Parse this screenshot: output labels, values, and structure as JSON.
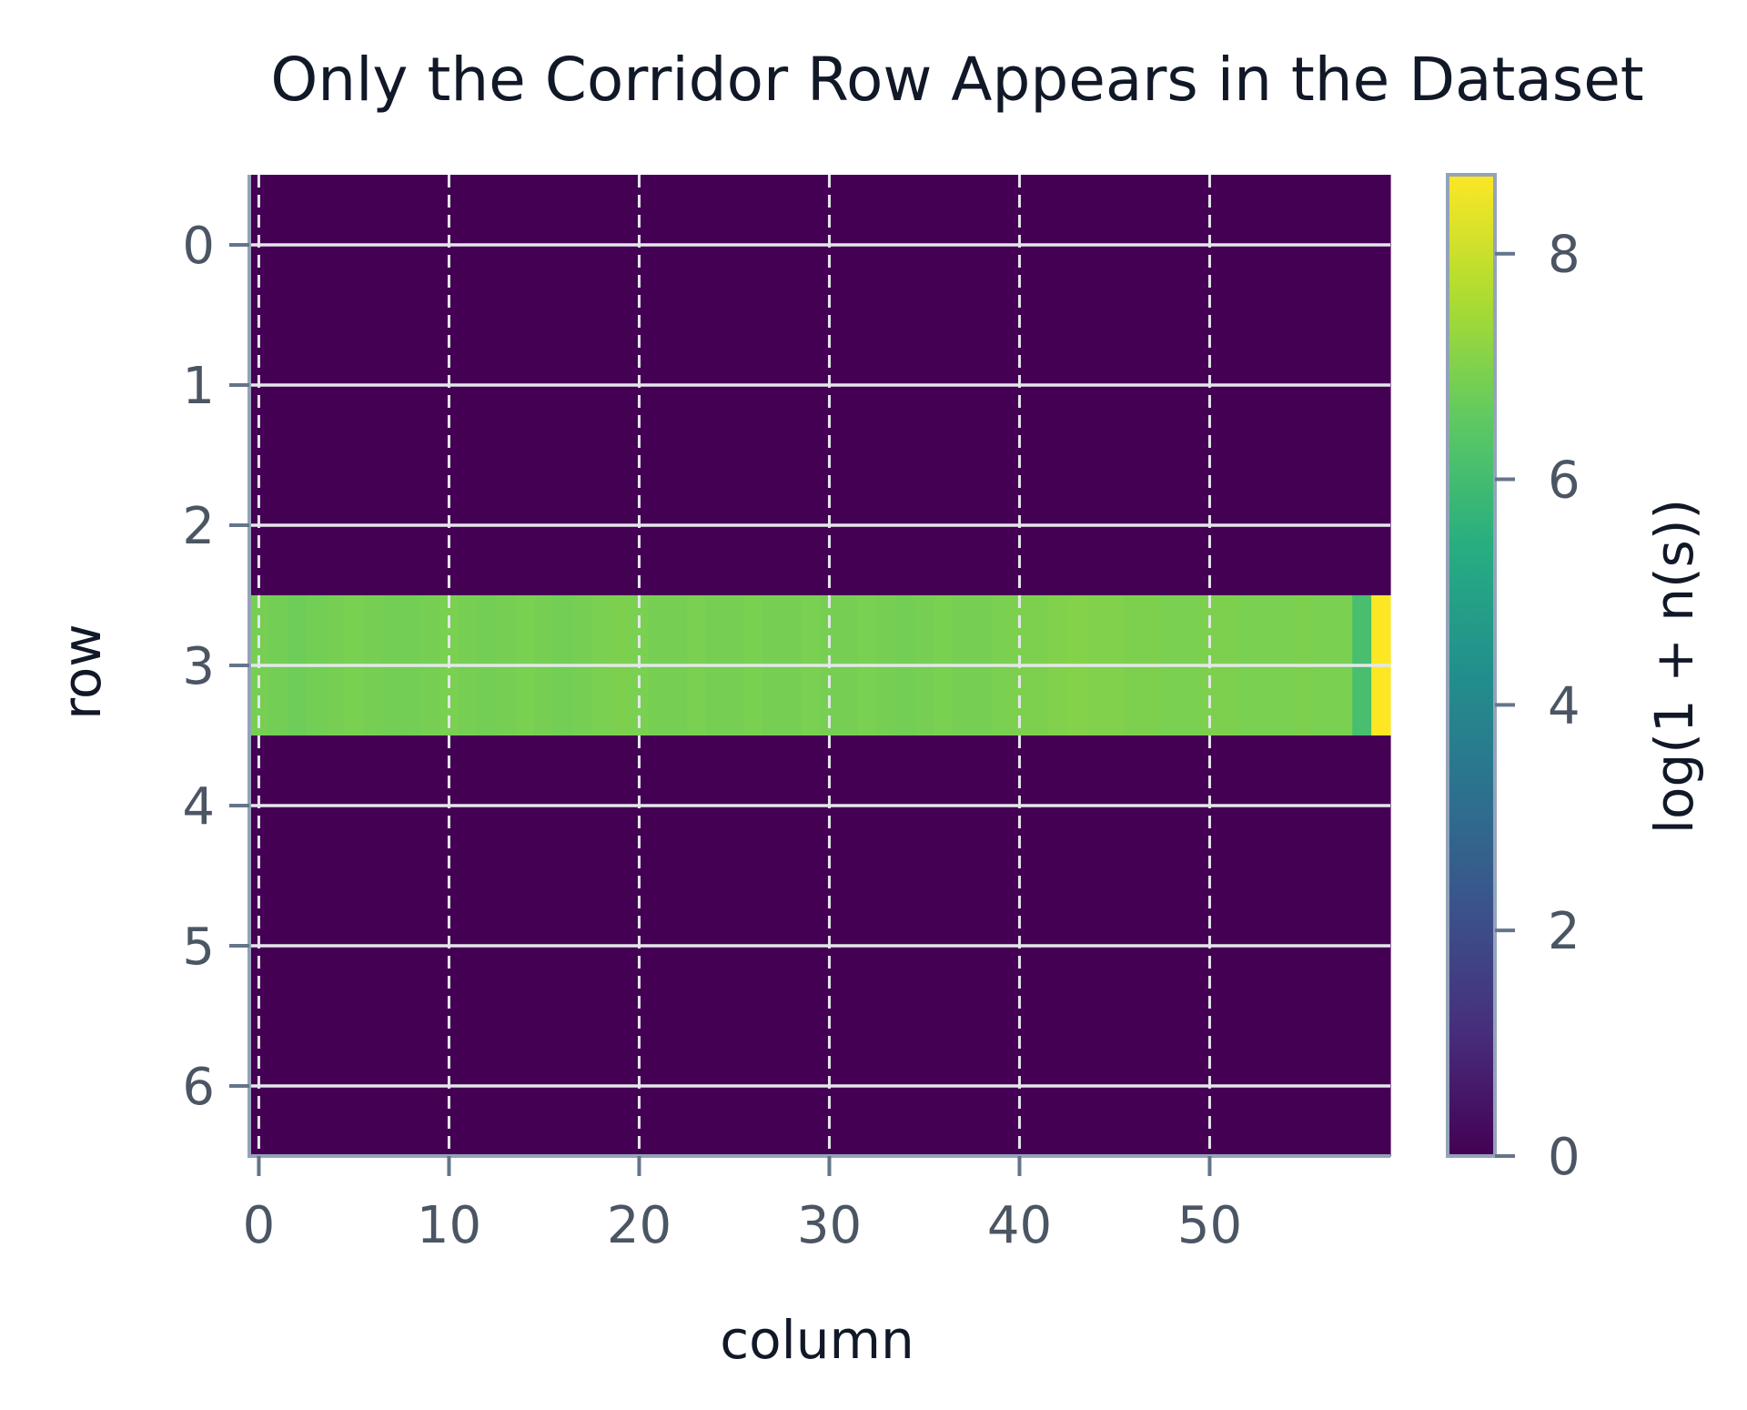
{
  "chart_data": {
    "type": "heatmap",
    "title": "Only the Corridor Row Appears in the Dataset",
    "xlabel": "column",
    "ylabel": "row",
    "colorbar_label": "log(1 + n(s))",
    "x_ticks": [
      "0",
      "10",
      "20",
      "30",
      "40",
      "50"
    ],
    "y_ticks": [
      "0",
      "1",
      "2",
      "3",
      "4",
      "5",
      "6"
    ],
    "colorbar_ticks": [
      "0",
      "2",
      "4",
      "6",
      "8"
    ],
    "n_rows": 7,
    "n_cols": 60,
    "vmin": 0,
    "vmax": 8.7,
    "colormap": "viridis",
    "grid": true,
    "background_value": 0,
    "corridor_row": 3,
    "corridor_values": [
      6.85,
      6.8,
      6.75,
      6.8,
      6.85,
      6.9,
      6.85,
      6.8,
      6.8,
      6.85,
      6.9,
      6.85,
      6.8,
      6.85,
      6.9,
      6.85,
      6.8,
      6.85,
      6.9,
      6.95,
      6.9,
      6.85,
      6.85,
      6.9,
      6.85,
      6.85,
      6.9,
      6.85,
      6.85,
      6.9,
      6.85,
      6.85,
      6.9,
      6.85,
      6.8,
      6.85,
      6.9,
      6.85,
      6.85,
      6.9,
      6.95,
      6.95,
      7.0,
      7.05,
      7.0,
      7.0,
      6.95,
      6.95,
      6.9,
      6.9,
      6.95,
      6.95,
      6.9,
      6.9,
      6.9,
      6.95,
      6.9,
      6.9,
      6.1,
      8.7
    ]
  }
}
